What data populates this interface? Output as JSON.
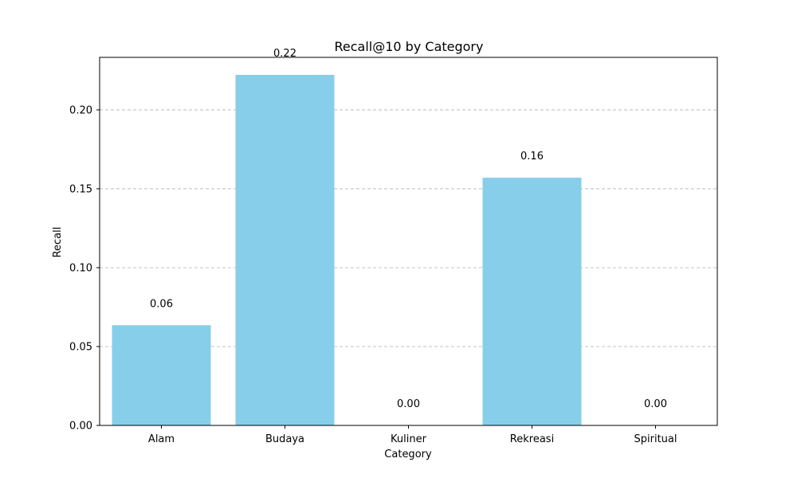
{
  "chart_data": {
    "type": "bar",
    "title": "Recall@10 by Category",
    "xlabel": "Category",
    "ylabel": "Recall",
    "categories": [
      "Alam",
      "Budaya",
      "Kuliner",
      "Rekreasi",
      "Spiritual"
    ],
    "values": [
      0.0635,
      0.2222,
      0.0,
      0.157,
      0.0
    ],
    "value_labels": [
      "0.06",
      "0.22",
      "0.00",
      "0.16",
      "0.00"
    ],
    "ylim": [
      0,
      0.2333
    ],
    "yticks": [
      0.0,
      0.05,
      0.1,
      0.15,
      0.2
    ],
    "ytick_labels": [
      "0.00",
      "0.05",
      "0.10",
      "0.15",
      "0.20"
    ],
    "grid": "y-dashed",
    "bar_color": "#87ceeb"
  }
}
